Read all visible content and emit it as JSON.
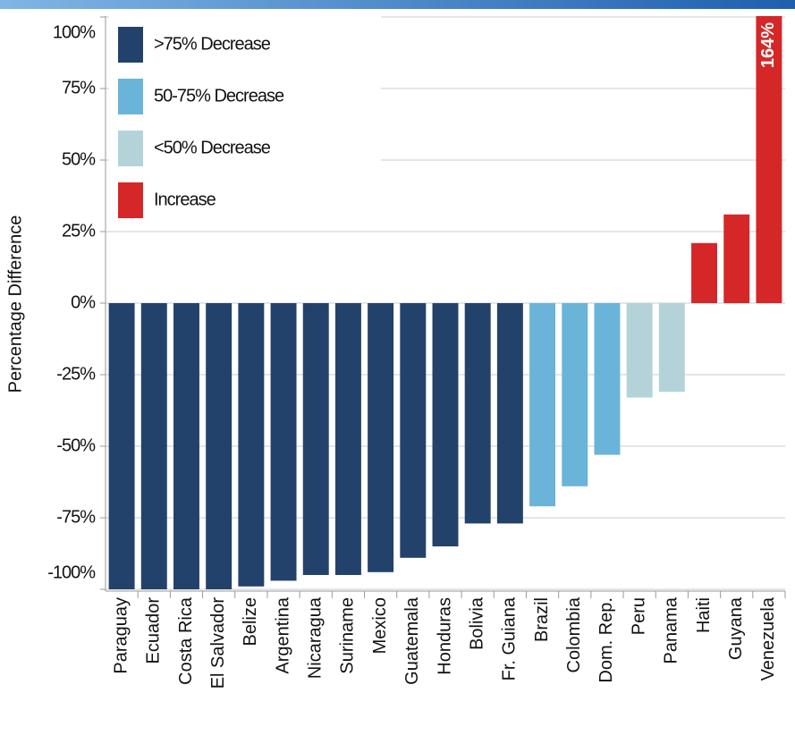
{
  "chart_data": {
    "type": "bar",
    "y_label": "Percentage Difference",
    "categories": [
      "Paraguay",
      "Ecuador",
      "Costa Rica",
      "El Salvador",
      "Belize",
      "Argentina",
      "Nicaragua",
      "Suriname",
      "Mexico",
      "Guatemala",
      "Honduras",
      "Bolivia",
      "Fr. Guiana",
      "Brazil",
      "Colombia",
      "Dom. Rep.",
      "Peru",
      "Panama",
      "Haiti",
      "Guyana",
      "Venezuela"
    ],
    "values": [
      -100,
      -100,
      -100,
      -100,
      -99,
      -97,
      -95,
      -95,
      -94,
      -89,
      -85,
      -77,
      -77,
      -71,
      -64,
      -53,
      -33,
      -31,
      21,
      31,
      164
    ],
    "value_labels": [
      null,
      null,
      null,
      null,
      null,
      null,
      null,
      null,
      null,
      null,
      null,
      null,
      null,
      null,
      null,
      null,
      null,
      null,
      null,
      null,
      "164%"
    ],
    "colors": [
      "#23426b",
      "#23426b",
      "#23426b",
      "#23426b",
      "#23426b",
      "#23426b",
      "#23426b",
      "#23426b",
      "#23426b",
      "#23426b",
      "#23426b",
      "#23426b",
      "#23426b",
      "#6ab4d9",
      "#6ab4d9",
      "#6ab4d9",
      "#b3d3d9",
      "#b3d3d9",
      "#d62728",
      "#d62728",
      "#d62728"
    ],
    "legend": [
      {
        "name": ">75% Decrease",
        "color": "#23426b"
      },
      {
        "name": "50-75% Decrease",
        "color": "#6ab4d9"
      },
      {
        "name": "<50% Decrease",
        "color": "#b3d3d9"
      },
      {
        "name": "Increase",
        "color": "#d62728"
      }
    ],
    "ylim": [
      -100,
      100
    ],
    "yticks": [
      {
        "value": 100,
        "label": "100%"
      },
      {
        "value": 75,
        "label": "75%"
      },
      {
        "value": 50,
        "label": "50%"
      },
      {
        "value": 25,
        "label": "25%"
      },
      {
        "value": 0,
        "label": "0%"
      },
      {
        "value": -25,
        "label": "-25%"
      },
      {
        "value": -50,
        "label": "-50%"
      },
      {
        "value": -75,
        "label": "-75%"
      },
      {
        "value": -100,
        "label": "-100%"
      }
    ],
    "grid": true
  }
}
